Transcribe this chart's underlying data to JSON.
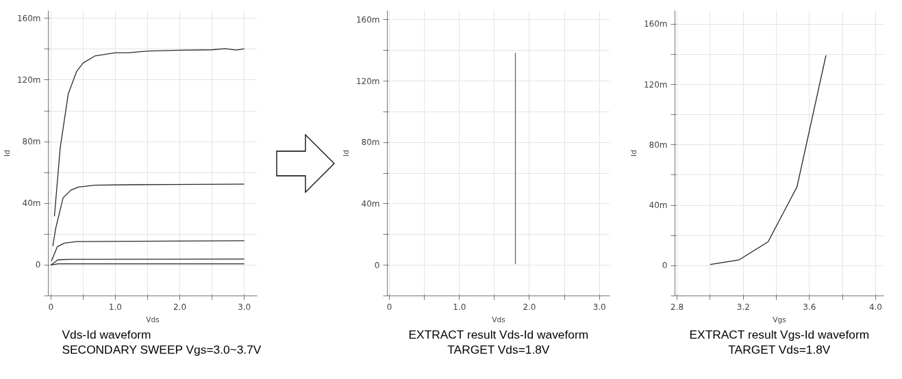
{
  "chart_data": [
    {
      "type": "line",
      "title": "Vds-Id waveform",
      "subtitle": "SECONDARY SWEEP Vgs=3.0~3.7V",
      "xlabel": "Vds",
      "ylabel": "Id",
      "xlim": [
        -0.04,
        3.2
      ],
      "ylim": [
        -20,
        165
      ],
      "xticks": [
        {
          "value": 0,
          "label": "0"
        },
        {
          "value": 0.5,
          "label": null
        },
        {
          "value": 1.0,
          "label": "1.0"
        },
        {
          "value": 1.5,
          "label": null
        },
        {
          "value": 2.0,
          "label": "2.0"
        },
        {
          "value": 2.5,
          "label": null
        },
        {
          "value": 3.0,
          "label": "3.0"
        }
      ],
      "yticks": [
        {
          "value": -20,
          "label": null
        },
        {
          "value": 0,
          "label": "0"
        },
        {
          "value": 20,
          "label": null
        },
        {
          "value": 40,
          "label": "40m"
        },
        {
          "value": 60,
          "label": null
        },
        {
          "value": 80,
          "label": "80m"
        },
        {
          "value": 100,
          "label": null
        },
        {
          "value": 120,
          "label": "120m"
        },
        {
          "value": 140,
          "label": null
        },
        {
          "value": 160,
          "label": "160m"
        }
      ],
      "grid": true,
      "series": [
        {
          "color": "#2b2b2b",
          "x": [
            0.055,
            0.145,
            0.27,
            0.4,
            0.5,
            0.69,
            1.0,
            1.2,
            1.5,
            2.0,
            2.5,
            2.7,
            2.88,
            3.0
          ],
          "values": [
            31.6,
            76,
            111,
            125.6,
            131,
            135.7,
            137.7,
            137.7,
            138.8,
            139.3,
            139.6,
            140.3,
            139.4,
            140.2
          ]
        },
        {
          "color": "#2b2b2b",
          "x": [
            0.03,
            0.075,
            0.19,
            0.31,
            0.43,
            0.69,
            1.27,
            3.0
          ],
          "values": [
            12.2,
            23.8,
            43.6,
            48.6,
            50.6,
            51.8,
            52.1,
            52.5
          ]
        },
        {
          "color": "#2b2b2b",
          "x": [
            0.01,
            0.1,
            0.21,
            0.4,
            3.0
          ],
          "values": [
            2.6,
            11.9,
            14.2,
            15.2,
            15.8
          ]
        },
        {
          "color": "#2b2b2b",
          "x": [
            0,
            0.11,
            0.31,
            3.0
          ],
          "values": [
            0,
            3.4,
            3.7,
            3.9
          ]
        },
        {
          "color": "#2b2b2b",
          "x": [
            0,
            0.11,
            3.0
          ],
          "values": [
            0,
            0.8,
            0.8
          ]
        }
      ]
    },
    {
      "type": "line",
      "title": "EXTRACT result Vds-Id waveform",
      "subtitle": "TARGET Vds=1.8V",
      "xlabel": "Vds",
      "ylabel": "Id",
      "xlim": [
        -0.03,
        3.15
      ],
      "ylim": [
        -20,
        166
      ],
      "xticks": [
        {
          "value": 0,
          "label": "0"
        },
        {
          "value": 0.5,
          "label": null
        },
        {
          "value": 1.0,
          "label": "1.0"
        },
        {
          "value": 1.5,
          "label": null
        },
        {
          "value": 2.0,
          "label": "2.0"
        },
        {
          "value": 2.5,
          "label": null
        },
        {
          "value": 3.0,
          "label": "3.0"
        }
      ],
      "yticks": [
        {
          "value": -20,
          "label": null
        },
        {
          "value": 0,
          "label": "0"
        },
        {
          "value": 20,
          "label": null
        },
        {
          "value": 40,
          "label": "40m"
        },
        {
          "value": 60,
          "label": null
        },
        {
          "value": 80,
          "label": "80m"
        },
        {
          "value": 100,
          "label": null
        },
        {
          "value": 120,
          "label": "120m"
        },
        {
          "value": 140,
          "label": null
        },
        {
          "value": 160,
          "label": "160m"
        }
      ],
      "grid": true,
      "series": [
        {
          "color": "#666666",
          "x": [
            1.8,
            1.8
          ],
          "values": [
            0.8,
            138.5
          ]
        }
      ]
    },
    {
      "type": "line",
      "title": "EXTRACT result Vgs-Id waveform",
      "subtitle": "TARGET Vds=1.8V",
      "xlabel": "Vgs",
      "ylabel": "Id",
      "xlim": [
        2.787,
        4.05
      ],
      "ylim": [
        -20,
        169
      ],
      "xticks": [
        {
          "value": 2.8,
          "label": "2.8"
        },
        {
          "value": 3.0,
          "label": null
        },
        {
          "value": 3.2,
          "label": "3.2"
        },
        {
          "value": 3.4,
          "label": null
        },
        {
          "value": 3.6,
          "label": "3.6"
        },
        {
          "value": 3.8,
          "label": null
        },
        {
          "value": 4.0,
          "label": "4.0"
        }
      ],
      "yticks": [
        {
          "value": -20,
          "label": null
        },
        {
          "value": 0,
          "label": "0"
        },
        {
          "value": 20,
          "label": null
        },
        {
          "value": 40,
          "label": "40m"
        },
        {
          "value": 60,
          "label": null
        },
        {
          "value": 80,
          "label": "80m"
        },
        {
          "value": 100,
          "label": null
        },
        {
          "value": 120,
          "label": "120m"
        },
        {
          "value": 140,
          "label": null
        },
        {
          "value": 160,
          "label": "160m"
        }
      ],
      "grid": true,
      "series": [
        {
          "color": "#222222",
          "x": [
            3.0,
            3.175,
            3.35,
            3.525,
            3.7
          ],
          "values": [
            0.8,
            3.9,
            15.8,
            52.3,
            139.4
          ]
        }
      ]
    }
  ]
}
